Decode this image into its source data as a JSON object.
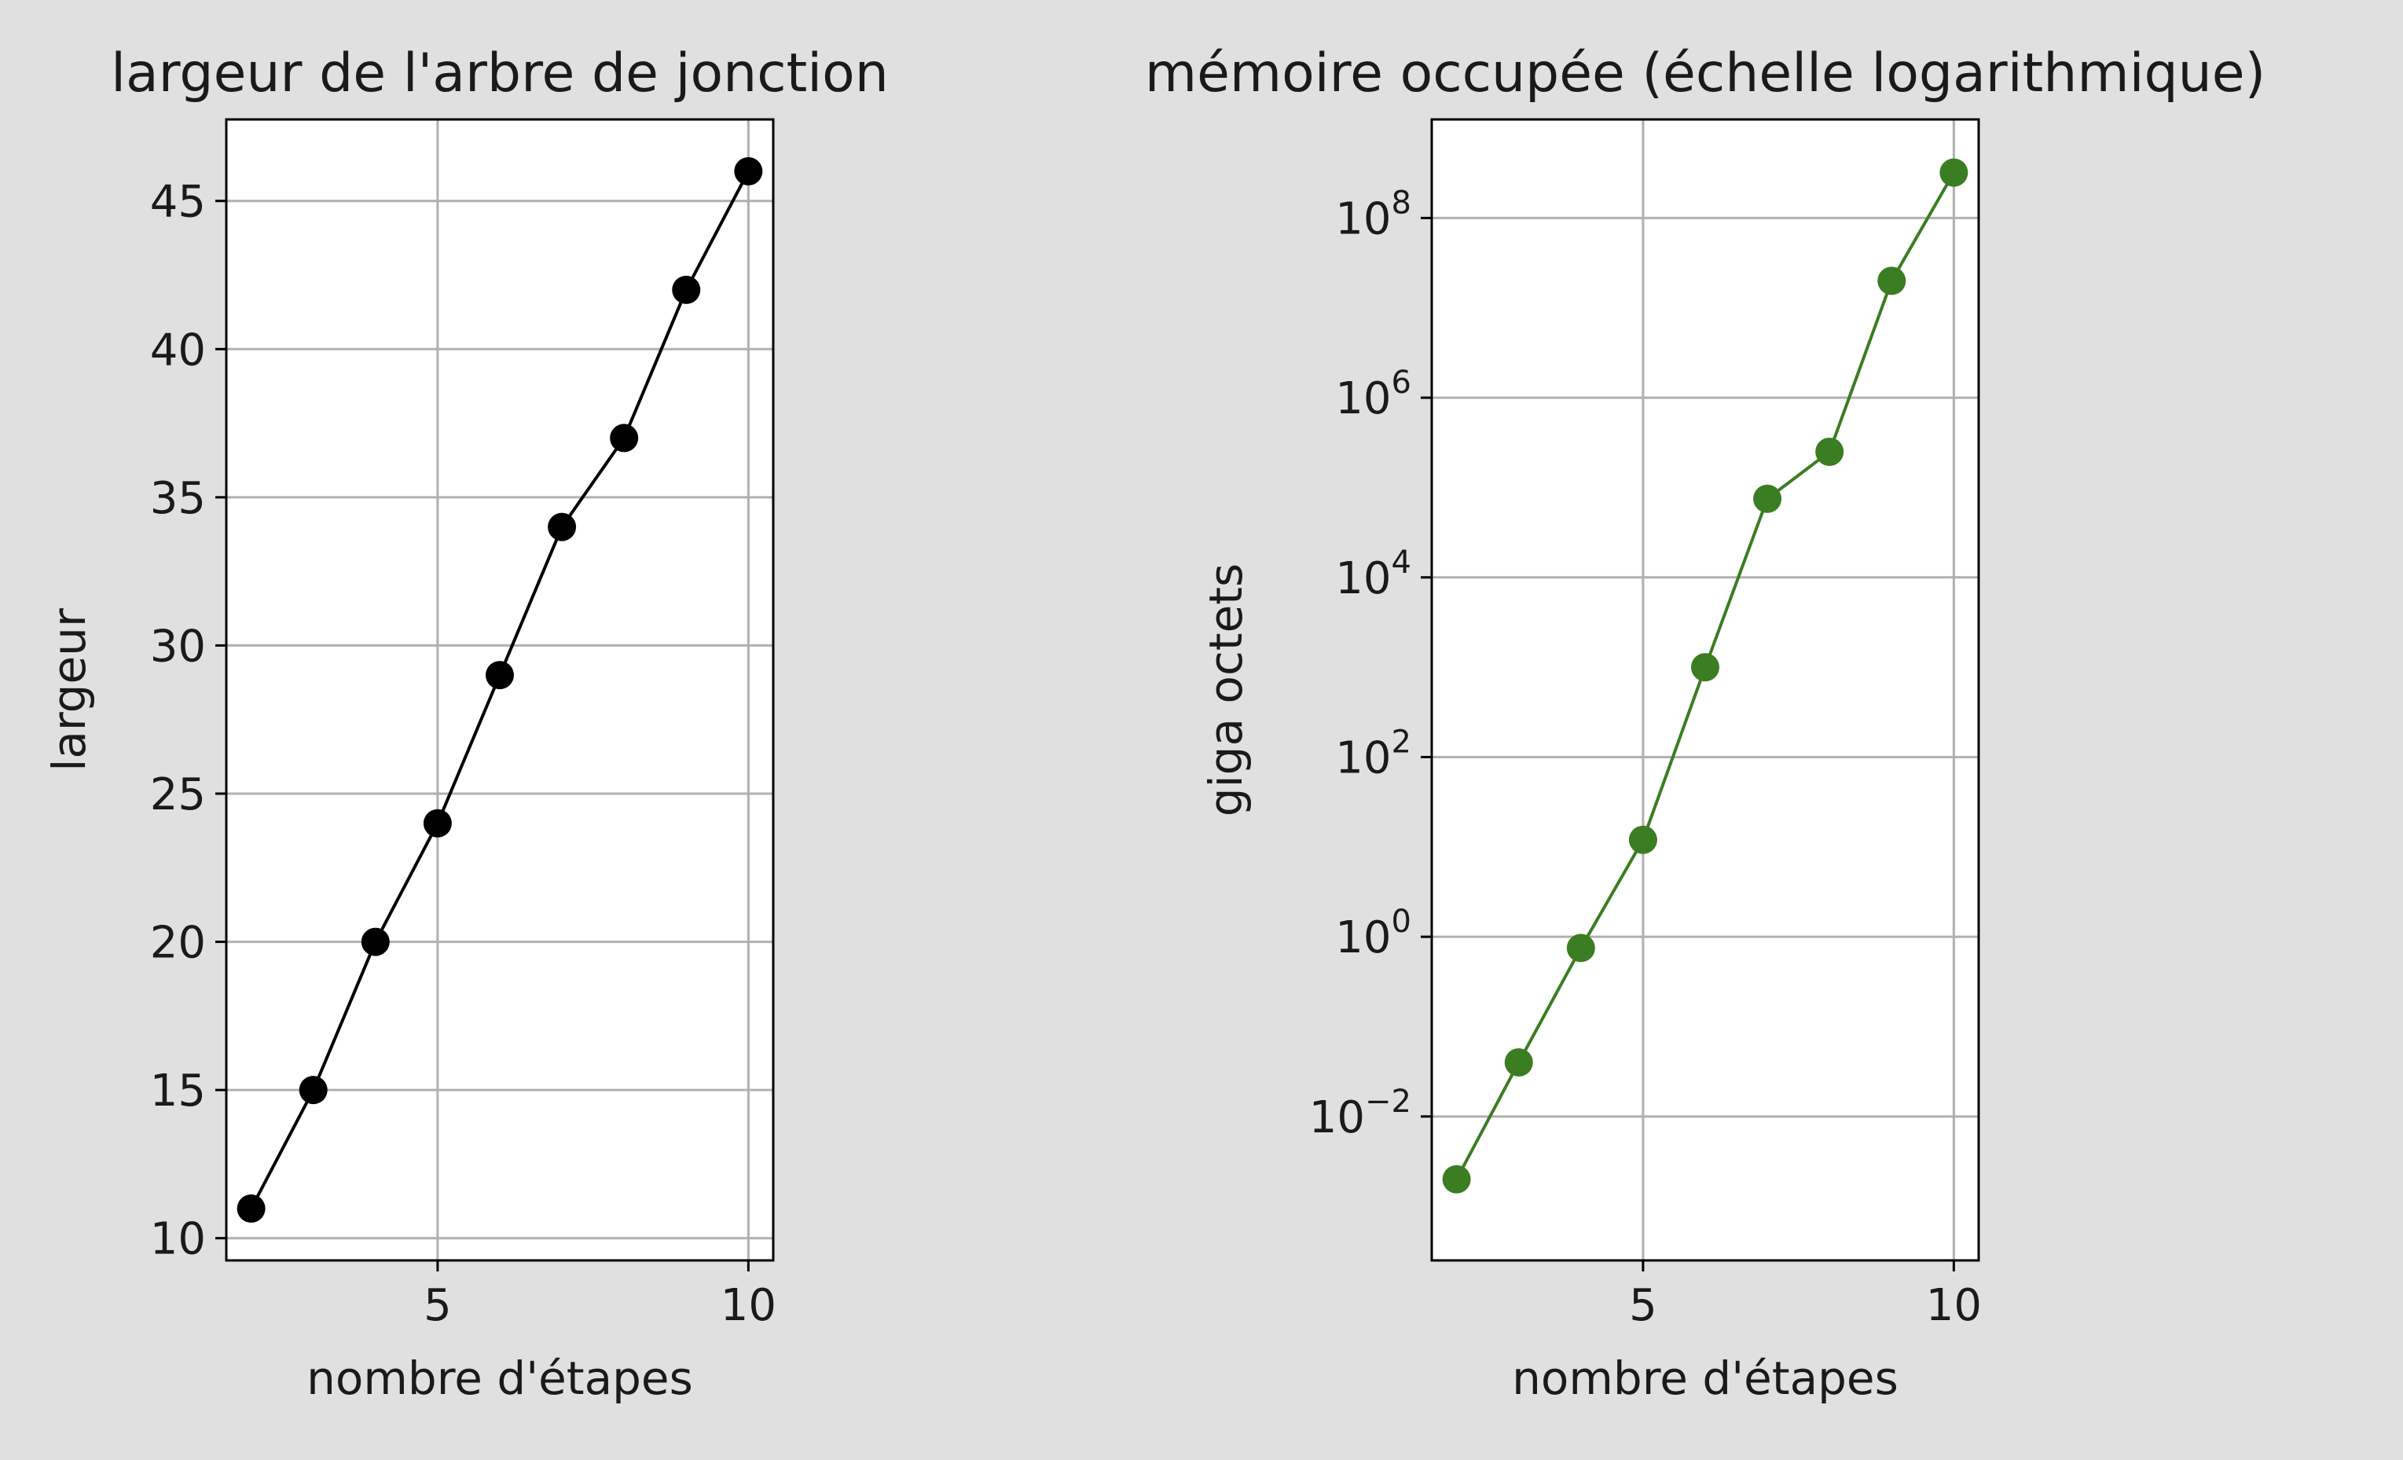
{
  "chart_data": [
    {
      "type": "line",
      "title": "largeur de l'arbre de jonction",
      "xlabel": "nombre d'étapes",
      "ylabel": "largeur",
      "xlim": [
        1.6,
        10.4
      ],
      "ylim": [
        9.25,
        47.75
      ],
      "x_ticks": [
        5,
        10
      ],
      "x_tick_labels": [
        "5",
        "10"
      ],
      "y_ticks": [
        10,
        15,
        20,
        25,
        30,
        35,
        40,
        45
      ],
      "y_tick_labels": [
        "10",
        "15",
        "20",
        "25",
        "30",
        "35",
        "40",
        "45"
      ],
      "grid": true,
      "y_scale": "linear",
      "color": "#000000",
      "marker": "circle",
      "series": [
        {
          "x": [
            2,
            3,
            4,
            5,
            6,
            7,
            8,
            9,
            10
          ],
          "values": [
            11,
            15,
            20,
            24,
            29,
            34,
            37,
            42,
            46
          ]
        }
      ]
    },
    {
      "type": "line",
      "title": "mémoire occupée (échelle logarithmique)",
      "xlabel": "nombre d'étapes",
      "ylabel": "giga octets",
      "xlim": [
        1.6,
        10.4
      ],
      "ylim": [
        0.00025,
        1250000000.0
      ],
      "x_ticks": [
        5,
        10
      ],
      "x_tick_labels": [
        "5",
        "10"
      ],
      "y_ticks": [
        0.01,
        1,
        100,
        10000,
        1000000,
        100000000
      ],
      "y_tick_labels": [
        {
          "base": "10",
          "exp": "−2"
        },
        {
          "base": "10",
          "exp": "0"
        },
        {
          "base": "10",
          "exp": "2"
        },
        {
          "base": "10",
          "exp": "4"
        },
        {
          "base": "10",
          "exp": "6"
        },
        {
          "base": "10",
          "exp": "8"
        }
      ],
      "grid": true,
      "y_scale": "log",
      "color": "#3a7d22",
      "marker": "circle",
      "series": [
        {
          "x": [
            2,
            3,
            4,
            5,
            6,
            7,
            8,
            9,
            10
          ],
          "values": [
            0.002,
            0.04,
            0.75,
            12,
            1000,
            75000,
            250000,
            20000000,
            320000000
          ]
        }
      ]
    }
  ]
}
